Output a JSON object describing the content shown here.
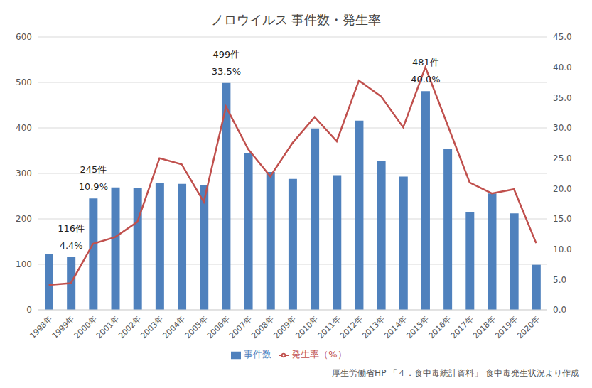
{
  "chart_data": {
    "type": "bar",
    "title": "ノロウイルス 事件数・発生率",
    "caption": "厚生労働省HP 「４．食中毒統計資料」 食中毒発生状況より作成",
    "categories": [
      "1998年",
      "1999年",
      "2000年",
      "2001年",
      "2002年",
      "2003年",
      "2004年",
      "2005年",
      "2006年",
      "2007年",
      "2008年",
      "2009年",
      "2010年",
      "2011年",
      "2012年",
      "2013年",
      "2014年",
      "2015年",
      "2016年",
      "2017年",
      "2018年",
      "2019年",
      "2020年"
    ],
    "series": [
      {
        "name": "事件数",
        "type": "bar",
        "color": "#4f81bd",
        "values": [
          123,
          116,
          245,
          269,
          268,
          278,
          277,
          274,
          499,
          344,
          303,
          288,
          399,
          296,
          416,
          328,
          293,
          481,
          354,
          214,
          256,
          212,
          99
        ]
      },
      {
        "name": "発生率（%）",
        "type": "line",
        "axis": "y2",
        "color": "#c0504d",
        "marker": "none",
        "values": [
          4.1,
          4.4,
          10.9,
          12.0,
          14.5,
          25.0,
          24.0,
          17.8,
          33.5,
          26.5,
          22.0,
          27.5,
          31.8,
          27.8,
          37.8,
          35.2,
          30.1,
          40.0,
          30.5,
          21.0,
          19.2,
          19.9,
          11.0
        ]
      }
    ],
    "annotations": [
      {
        "category": "1999年",
        "lines": [
          "116件",
          "4.4%"
        ]
      },
      {
        "category": "2000年",
        "lines": [
          "245件",
          "10.9%"
        ]
      },
      {
        "category": "2006年",
        "lines": [
          "499件",
          "33.5%"
        ]
      },
      {
        "category": "2015年",
        "lines": [
          "481件",
          "40.0%"
        ]
      }
    ],
    "ylim": [
      0,
      600
    ],
    "yticks": [
      0,
      100,
      200,
      300,
      400,
      500,
      600
    ],
    "y2lim": [
      0,
      45
    ],
    "y2ticks": [
      {
        "value": 0,
        "label": "0.0"
      },
      {
        "value": 5,
        "label": "5.0"
      },
      {
        "value": 10,
        "label": "10.0"
      },
      {
        "value": 15,
        "label": "15.0"
      },
      {
        "value": 20,
        "label": "20.0"
      },
      {
        "value": 25,
        "label": "25.0"
      },
      {
        "value": 30,
        "label": "30.0"
      },
      {
        "value": 35,
        "label": "35.0"
      },
      {
        "value": 40,
        "label": "40.0"
      },
      {
        "value": 45,
        "label": "45.0"
      }
    ],
    "grid": true,
    "legend": "bottom"
  }
}
